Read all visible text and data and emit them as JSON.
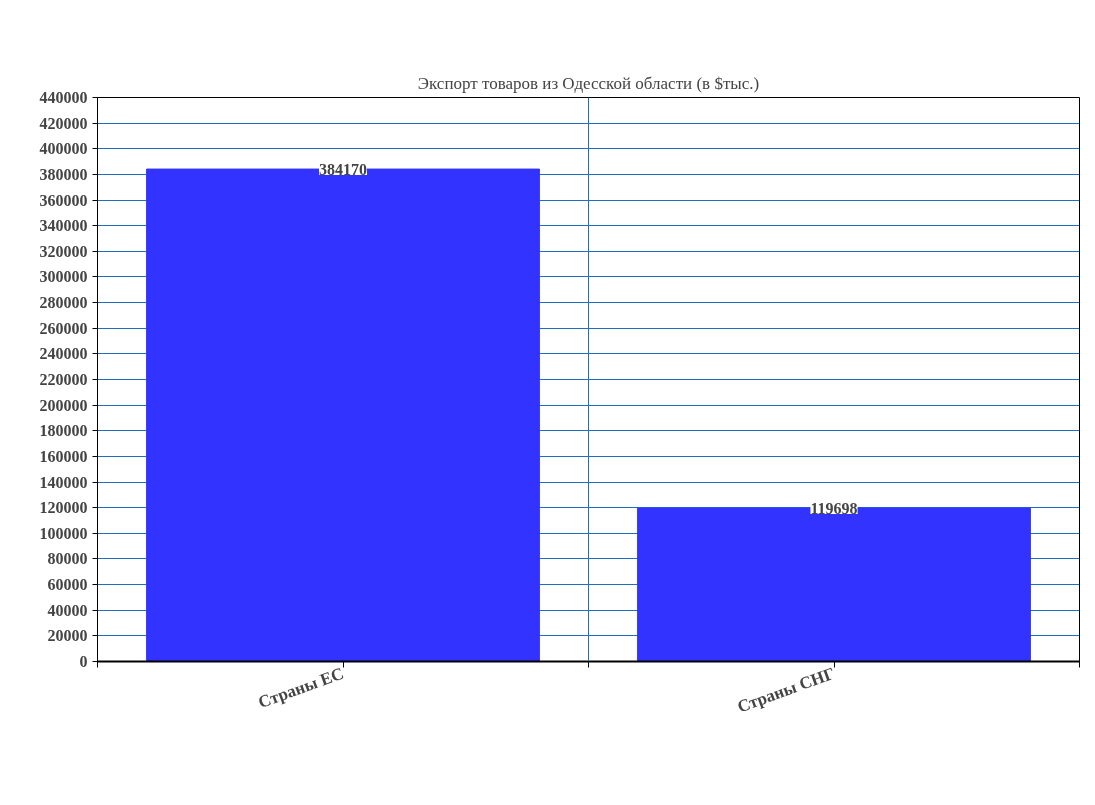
{
  "chart_data": {
    "type": "bar",
    "title": "Экспорт товаров из Одесской области (в $тыс.)",
    "categories": [
      "Страны ЕС",
      "Страны СНГ"
    ],
    "values": [
      384170,
      119698
    ],
    "color": "#3333ff",
    "ylim": [
      0,
      440000
    ],
    "yticks": [
      0,
      20000,
      40000,
      60000,
      80000,
      100000,
      120000,
      140000,
      160000,
      180000,
      200000,
      220000,
      240000,
      260000,
      280000,
      300000,
      320000,
      340000,
      360000,
      380000,
      400000,
      420000,
      440000
    ],
    "grid": true,
    "data_labels": true
  }
}
